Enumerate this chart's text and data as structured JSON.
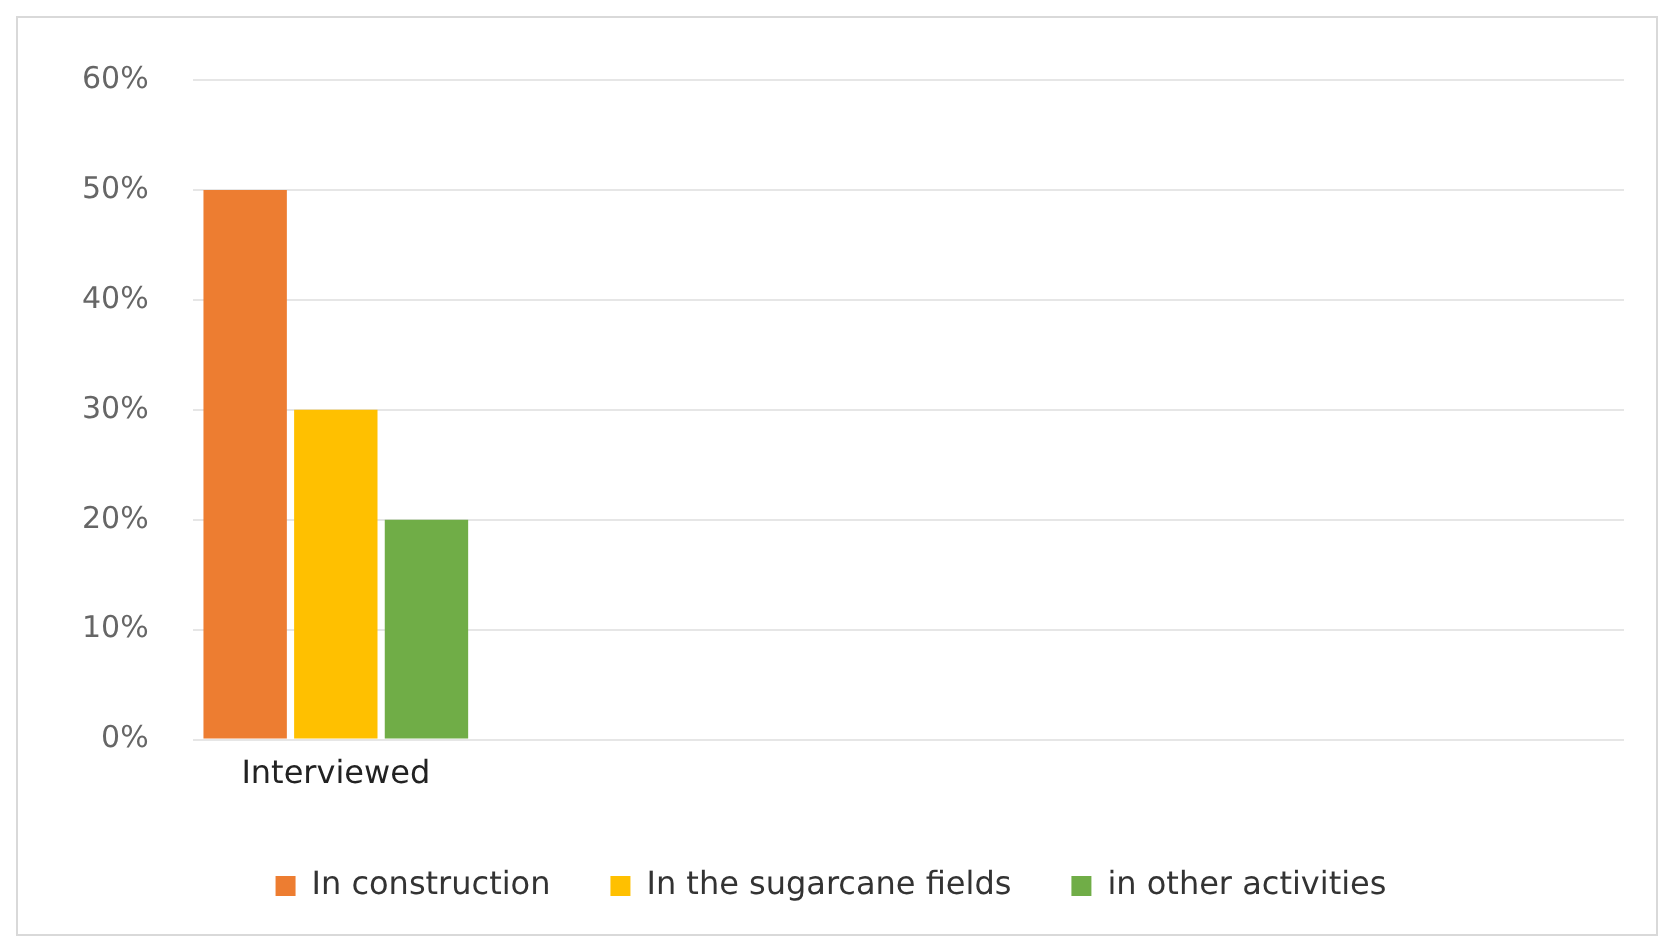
{
  "chart_data": {
    "type": "bar",
    "categories": [
      "Interviewed",
      null,
      null,
      null,
      null
    ],
    "series": [
      {
        "name": "In construction",
        "color": "#ed7d31",
        "values": [
          50,
          null,
          null,
          null,
          null
        ]
      },
      {
        "name": "In the sugarcane fields",
        "color": "#ffc000",
        "values": [
          30,
          null,
          null,
          null,
          null
        ]
      },
      {
        "name": "in other activities",
        "color": "#70ad47",
        "values": [
          20,
          null,
          null,
          null,
          null
        ]
      }
    ],
    "ylim": [
      0,
      60
    ],
    "yticks": [
      {
        "value": 0,
        "label": "0%"
      },
      {
        "value": 10,
        "label": "10%"
      },
      {
        "value": 20,
        "label": "20%"
      },
      {
        "value": 30,
        "label": "30%"
      },
      {
        "value": 40,
        "label": "40%"
      },
      {
        "value": 50,
        "label": "50%"
      },
      {
        "value": 60,
        "label": "60%"
      }
    ],
    "grid": "y",
    "legend": "bottom"
  }
}
